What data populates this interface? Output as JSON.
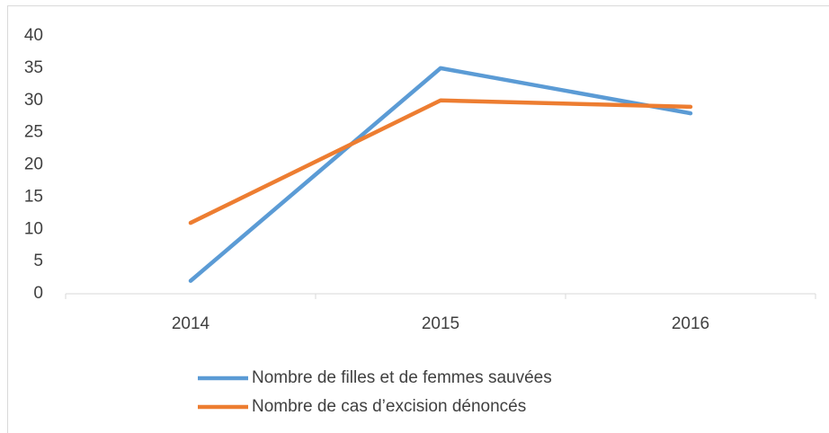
{
  "chart_data": {
    "type": "line",
    "categories": [
      "2014",
      "2015",
      "2016"
    ],
    "series": [
      {
        "name": "Nombre de filles et de femmes sauvées",
        "color": "#5b9bd5",
        "values": [
          2,
          35,
          28
        ]
      },
      {
        "name": "Nombre de cas d’excision dénoncés",
        "color": "#ed7d31",
        "values": [
          11,
          30,
          29
        ]
      }
    ],
    "ylim": [
      0,
      40
    ],
    "yticks": [
      0,
      5,
      10,
      15,
      20,
      25,
      30,
      35,
      40
    ],
    "grid": false,
    "legend": "bottom"
  }
}
